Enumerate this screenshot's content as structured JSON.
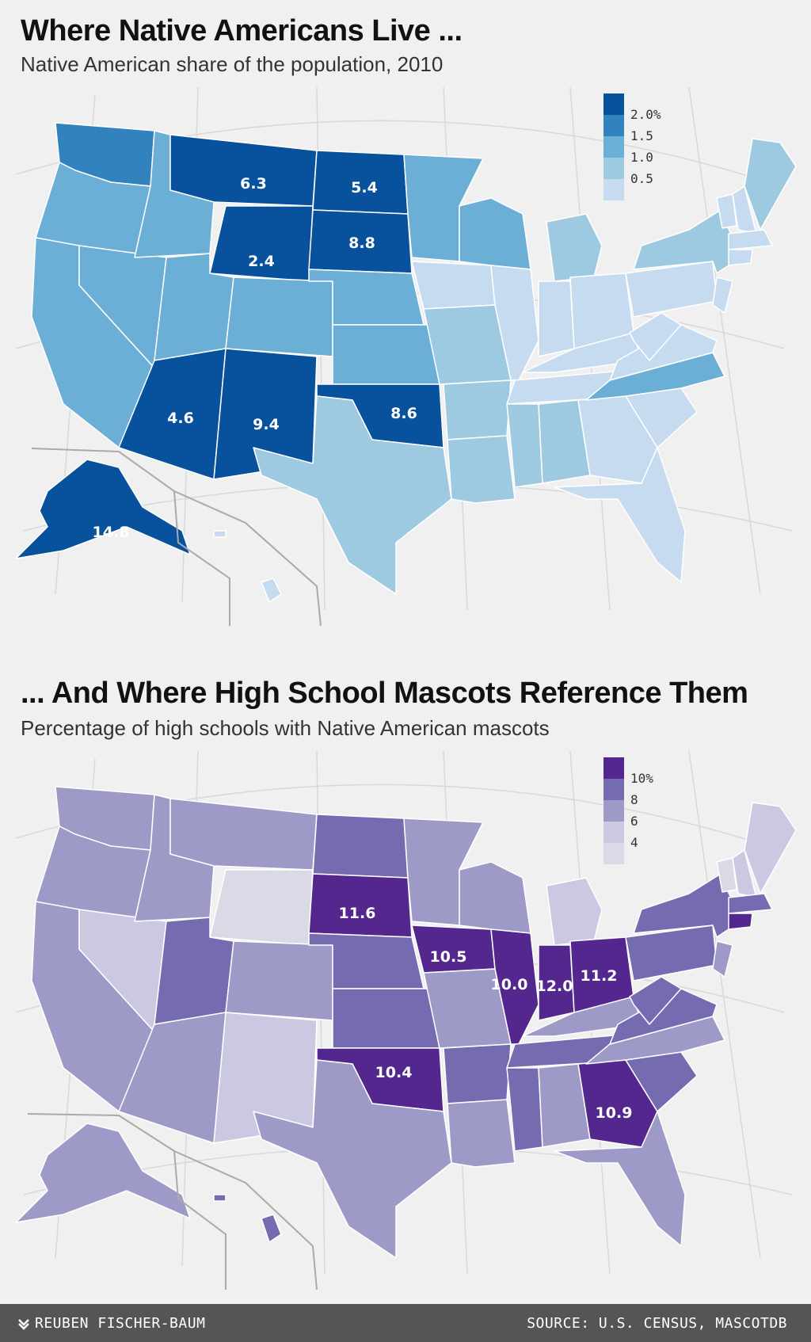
{
  "map1": {
    "title": "Where Native Americans Live ...",
    "subtitle": "Native American share of the population, 2010",
    "legend": [
      {
        "label": "2.0%",
        "color": "#08519c"
      },
      {
        "label": "1.5",
        "color": "#3182bd"
      },
      {
        "label": "1.0",
        "color": "#6baed6"
      },
      {
        "label": "0.5",
        "color": "#9ecae1"
      },
      {
        "label": "",
        "color": "#c6dbef"
      }
    ],
    "labels": [
      {
        "state": "Montana",
        "text": "6.3"
      },
      {
        "state": "North Dakota",
        "text": "5.4"
      },
      {
        "state": "South Dakota",
        "text": "8.8"
      },
      {
        "state": "Wyoming",
        "text": "2.4"
      },
      {
        "state": "Arizona",
        "text": "4.6"
      },
      {
        "state": "New Mexico",
        "text": "9.4"
      },
      {
        "state": "Oklahoma",
        "text": "8.6"
      },
      {
        "state": "Alaska",
        "text": "14.8"
      }
    ]
  },
  "map2": {
    "title": "... And Where High School Mascots Reference Them",
    "subtitle": "Percentage of high schools with Native American mascots",
    "legend": [
      {
        "label": "10%",
        "color": "#54278f"
      },
      {
        "label": "8",
        "color": "#756bb1"
      },
      {
        "label": "6",
        "color": "#9e9ac8"
      },
      {
        "label": "4",
        "color": "#cbc9e2"
      },
      {
        "label": "",
        "color": "#dadae6"
      }
    ],
    "labels": [
      {
        "state": "South Dakota",
        "text": "11.6"
      },
      {
        "state": "Iowa",
        "text": "10.5"
      },
      {
        "state": "Illinois",
        "text": "10.0"
      },
      {
        "state": "Indiana",
        "text": "12.0"
      },
      {
        "state": "Ohio",
        "text": "11.2"
      },
      {
        "state": "Oklahoma",
        "text": "10.4"
      },
      {
        "state": "Georgia",
        "text": "10.9"
      }
    ]
  },
  "footer": {
    "credit": "REUBEN FISCHER-BAUM",
    "source": "SOURCE: U.S. CENSUS, MASCOTDB"
  }
}
